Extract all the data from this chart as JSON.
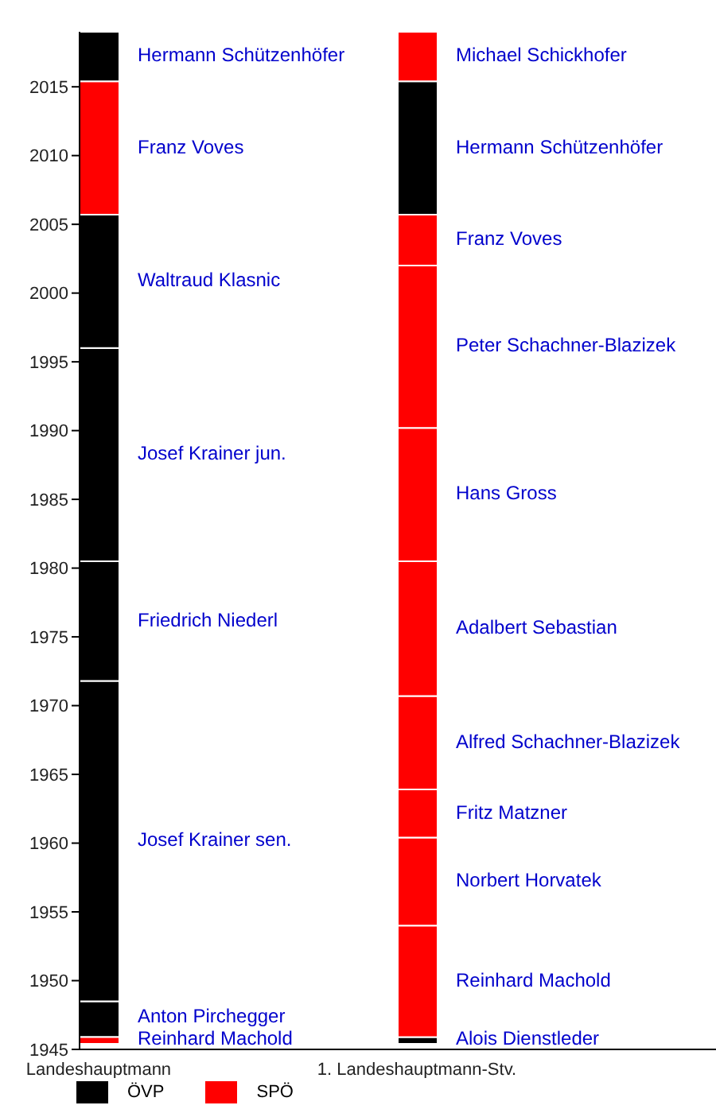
{
  "chart_data": {
    "type": "bar",
    "categories": [
      "Landeshauptmann",
      "1. Landeshauptmann-Stv."
    ],
    "ylim": [
      1945,
      2019
    ],
    "yticks": [
      1945,
      1950,
      1955,
      1960,
      1965,
      1970,
      1975,
      1980,
      1985,
      1990,
      1995,
      2000,
      2005,
      2010,
      2015
    ],
    "legend": "bottom",
    "series": [
      {
        "name": "ÖVP",
        "color": "#000000",
        "values": [
          2.6,
          null
        ],
        "base": [
          1945.9,
          null
        ]
      },
      {
        "name": "SPÖ",
        "color": "#ff0000",
        "values": [
          0.5,
          null
        ],
        "base": [
          1945.4,
          null
        ]
      },
      {
        "color": "#000000",
        "values": [
          23.3,
          null
        ],
        "base": [
          1948.5,
          null
        ]
      },
      {
        "color": "#000000",
        "values": [
          8.7,
          null
        ],
        "base": [
          1971.8,
          null
        ]
      },
      {
        "color": "#000000",
        "values": [
          15.5,
          null
        ],
        "base": [
          1980.5,
          null
        ]
      },
      {
        "color": "#000000",
        "values": [
          9.7,
          null
        ],
        "base": [
          1996,
          null
        ]
      },
      {
        "color": "#ff0000",
        "values": [
          9.7,
          null
        ],
        "base": [
          2005.7,
          null
        ]
      },
      {
        "color": "#000000",
        "values": [
          3.6,
          null
        ],
        "base": [
          2015.4,
          null
        ]
      },
      {
        "color": "#000000",
        "values": [
          null,
          0.5
        ],
        "base": [
          null,
          1945.4
        ]
      },
      {
        "color": "#ff0000",
        "values": [
          null,
          8.1
        ],
        "base": [
          null,
          1945.9
        ]
      },
      {
        "color": "#ff0000",
        "values": [
          null,
          6.4
        ],
        "base": [
          null,
          1954
        ]
      },
      {
        "color": "#ff0000",
        "values": [
          null,
          3.5
        ],
        "base": [
          null,
          1960.4
        ]
      },
      {
        "color": "#ff0000",
        "values": [
          null,
          6.8
        ],
        "base": [
          null,
          1963.9
        ]
      },
      {
        "color": "#ff0000",
        "values": [
          null,
          9.8
        ],
        "base": [
          null,
          1970.7
        ]
      },
      {
        "color": "#ff0000",
        "values": [
          null,
          9.7
        ],
        "base": [
          null,
          1980.5
        ]
      },
      {
        "color": "#ff0000",
        "values": [
          null,
          11.8
        ],
        "base": [
          null,
          1990.2
        ]
      },
      {
        "color": "#ff0000",
        "values": [
          null,
          3.7
        ],
        "base": [
          null,
          2002
        ]
      },
      {
        "color": "#000000",
        "values": [
          null,
          9.7
        ],
        "base": [
          null,
          2005.7
        ]
      },
      {
        "color": "#ff0000",
        "values": [
          null,
          3.6
        ],
        "base": [
          null,
          2015.4
        ]
      }
    ],
    "annotations": [
      "Anton Pirchegger",
      "Reinhard Machold",
      "Josef Krainer sen.",
      "Friedrich Niederl",
      "Josef Krainer jun.",
      "Waltraud Klasnic",
      "Franz Voves",
      "Hermann Schützenhöfer",
      "Alois Dienstleder",
      "Reinhard Machold",
      "Norbert Horvatek",
      "Fritz Matzner",
      "Alfred Schachner-Blazizek",
      "Adalbert Sebastian",
      "Hans Gross",
      "Peter Schachner-Blazizek",
      "Franz Voves",
      "Hermann Schützenhöfer",
      "Michael Schickhofer"
    ]
  }
}
